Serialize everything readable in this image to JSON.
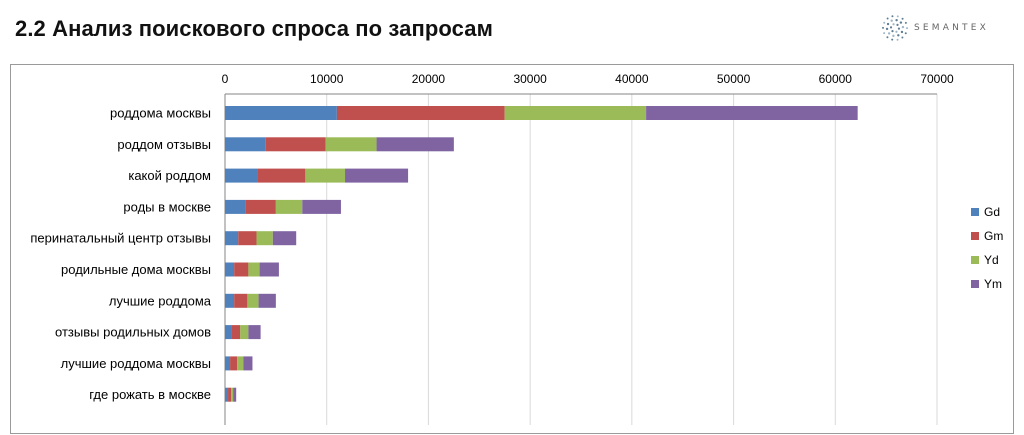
{
  "slide": {
    "title": "2.2 Анализ поискового спроса по запросам"
  },
  "logo": {
    "text": "SEMANTEX",
    "icon": "dotted-circle-logo-icon"
  },
  "colors": {
    "Gd": "#4f81bd",
    "Gm": "#c0504d",
    "Yd": "#9bbb59",
    "Ym": "#8064a2",
    "grid": "#d9d9d9",
    "axis": "#868686"
  },
  "chart_data": {
    "type": "bar",
    "orientation": "horizontal",
    "stacked": true,
    "title": "",
    "xlabel": "",
    "ylabel": "",
    "xlim": [
      0,
      70000
    ],
    "ticks": [
      0,
      10000,
      20000,
      30000,
      40000,
      50000,
      60000,
      70000
    ],
    "tick_labels": [
      "0",
      "10000",
      "20000",
      "30000",
      "40000",
      "50000",
      "60000",
      "70000"
    ],
    "grid": true,
    "legend_position": "right",
    "categories": [
      "роддома москвы",
      "роддом отзывы",
      "какой роддом",
      "роды в москве",
      "перинатальный центр отзывы",
      "родильные дома москвы",
      "лучшие роддома",
      "отзывы родильных домов",
      "лучшие роддома москвы",
      "где рожать в москве"
    ],
    "series": [
      {
        "name": "Gd",
        "values": [
          11000,
          4000,
          3200,
          2000,
          1300,
          900,
          900,
          600,
          500,
          300
        ]
      },
      {
        "name": "Gm",
        "values": [
          16500,
          5900,
          4700,
          3000,
          1800,
          1400,
          1300,
          900,
          700,
          300
        ]
      },
      {
        "name": "Yd",
        "values": [
          13900,
          5000,
          3900,
          2600,
          1600,
          1100,
          1100,
          800,
          600,
          200
        ]
      },
      {
        "name": "Ym",
        "values": [
          20800,
          7600,
          6200,
          3800,
          2300,
          1900,
          1700,
          1200,
          900,
          300
        ]
      }
    ]
  }
}
